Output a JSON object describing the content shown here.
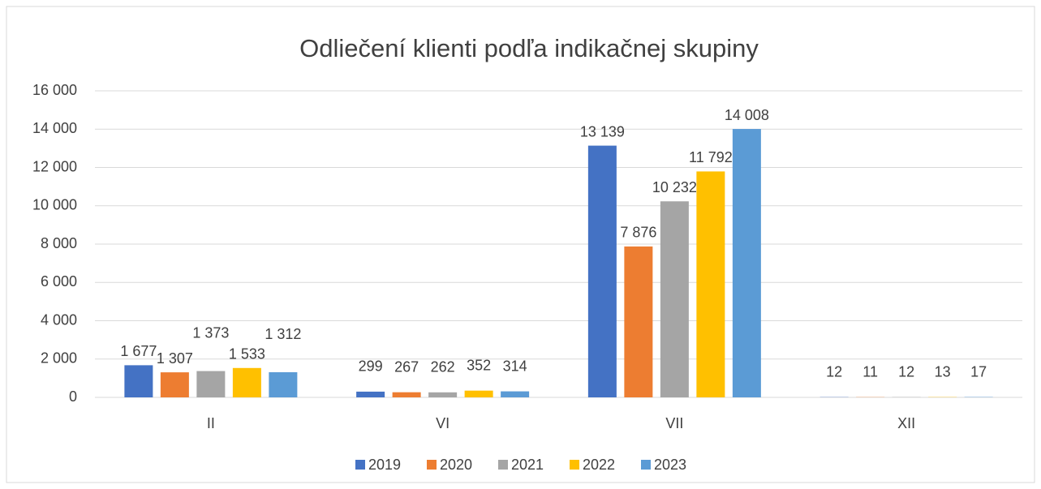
{
  "chart_data": {
    "type": "bar",
    "title": "Odliečení klienti podľa indikačnej skupiny",
    "categories": [
      "II",
      "VI",
      "VII",
      "XII"
    ],
    "series": [
      {
        "name": "2019",
        "color": "#4472c4",
        "values": [
          1677,
          299,
          13139,
          12
        ],
        "value_labels": [
          "1 677",
          "299",
          "13 139",
          "12"
        ]
      },
      {
        "name": "2020",
        "color": "#ed7d31",
        "values": [
          1307,
          267,
          7876,
          11
        ],
        "value_labels": [
          "1 307",
          "267",
          "7 876",
          "11"
        ]
      },
      {
        "name": "2021",
        "color": "#a5a5a5",
        "values": [
          1373,
          262,
          10232,
          12
        ],
        "value_labels": [
          "1 373",
          "262",
          "10 232",
          "12"
        ]
      },
      {
        "name": "2022",
        "color": "#ffc000",
        "values": [
          1533,
          352,
          11792,
          13
        ],
        "value_labels": [
          "1 533",
          "352",
          "11 792",
          "13"
        ]
      },
      {
        "name": "2023",
        "color": "#5b9bd5",
        "values": [
          1312,
          314,
          14008,
          17
        ],
        "value_labels": [
          "1 312",
          "314",
          "14 008",
          "17"
        ]
      }
    ],
    "ylim": [
      0,
      16000
    ],
    "yticks": [
      0,
      {
        "value": 2000,
        "label": "2 000"
      },
      {
        "value": 4000,
        "label": "4 000"
      },
      {
        "value": 6000,
        "label": "6 000"
      },
      {
        "value": 8000,
        "label": "8 000"
      },
      {
        "value": 10000,
        "label": "10 000"
      },
      {
        "value": 12000,
        "label": "12 000"
      },
      {
        "value": 14000,
        "label": "14 000"
      },
      {
        "value": 16000,
        "label": "16 000"
      }
    ],
    "grid": true,
    "legend": "bottom"
  }
}
